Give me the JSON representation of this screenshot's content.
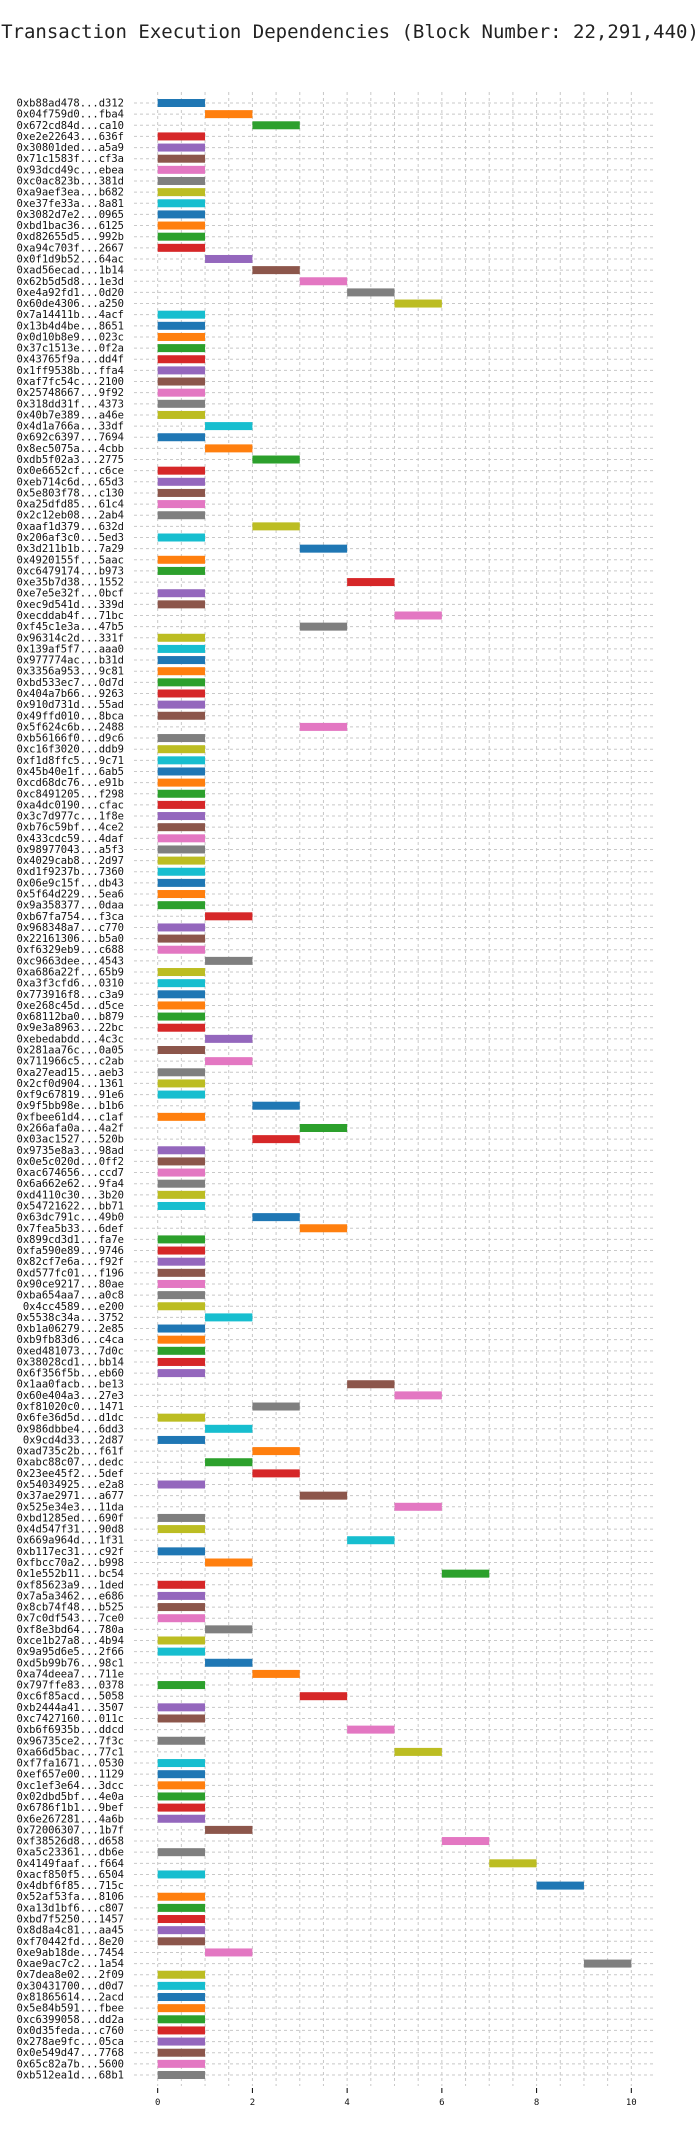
{
  "chart_data": {
    "type": "gantt",
    "title": "Transaction Execution Dependencies (Block Number: 22,291,440)",
    "xlabel": "",
    "ylabel": "",
    "xlim": [
      -0.5,
      10.5
    ],
    "x_ticks": [
      0,
      2,
      4,
      6,
      8,
      10
    ],
    "grid": true,
    "colors": [
      "#1f77b4",
      "#ff7f0e",
      "#2ca02c",
      "#d62728",
      "#9467bd",
      "#8c564b",
      "#e377c2",
      "#7f7f7f",
      "#bcbd22",
      "#17becf"
    ],
    "bars": [
      {
        "label": "0xb88ad478...d312",
        "start": 0,
        "end": 1
      },
      {
        "label": "0x04f759d0...fba4",
        "start": 1,
        "end": 2
      },
      {
        "label": "0x672cd84d...ca10",
        "start": 2,
        "end": 3
      },
      {
        "label": "0xe2e22643...636f",
        "start": 0,
        "end": 1
      },
      {
        "label": "0x30801ded...a5a9",
        "start": 0,
        "end": 1
      },
      {
        "label": "0x71c1583f...cf3a",
        "start": 0,
        "end": 1
      },
      {
        "label": "0x93dcd49c...ebea",
        "start": 0,
        "end": 1
      },
      {
        "label": "0xc0ac823b...381d",
        "start": 0,
        "end": 1
      },
      {
        "label": "0xa9aef3ea...b682",
        "start": 0,
        "end": 1
      },
      {
        "label": "0xe37fe33a...8a81",
        "start": 0,
        "end": 1
      },
      {
        "label": "0x3082d7e2...0965",
        "start": 0,
        "end": 1
      },
      {
        "label": "0xbd1bac36...6125",
        "start": 0,
        "end": 1
      },
      {
        "label": "0xd82655d5...992b",
        "start": 0,
        "end": 1
      },
      {
        "label": "0xa94c703f...2667",
        "start": 0,
        "end": 1
      },
      {
        "label": "0x0f1d9b52...64ac",
        "start": 1,
        "end": 2
      },
      {
        "label": "0xad56ecad...1b14",
        "start": 2,
        "end": 3
      },
      {
        "label": "0x62b5d5d8...1e3d",
        "start": 3,
        "end": 4
      },
      {
        "label": "0xe4a92fd1...0d20",
        "start": 4,
        "end": 5
      },
      {
        "label": "0x60de4306...a250",
        "start": 5,
        "end": 6
      },
      {
        "label": "0x7a14411b...4acf",
        "start": 0,
        "end": 1
      },
      {
        "label": "0x13b4d4be...8651",
        "start": 0,
        "end": 1
      },
      {
        "label": "0x0d10b8e9...023c",
        "start": 0,
        "end": 1
      },
      {
        "label": "0x37c1513e...0f2a",
        "start": 0,
        "end": 1
      },
      {
        "label": "0x43765f9a...dd4f",
        "start": 0,
        "end": 1
      },
      {
        "label": "0x1ff9538b...ffa4",
        "start": 0,
        "end": 1
      },
      {
        "label": "0xaf7fc54c...2100",
        "start": 0,
        "end": 1
      },
      {
        "label": "0x25748667...9f92",
        "start": 0,
        "end": 1
      },
      {
        "label": "0x318dd31f...4373",
        "start": 0,
        "end": 1
      },
      {
        "label": "0x40b7e389...a46e",
        "start": 0,
        "end": 1
      },
      {
        "label": "0x4d1a766a...33df",
        "start": 1,
        "end": 2
      },
      {
        "label": "0x692c6397...7694",
        "start": 0,
        "end": 1
      },
      {
        "label": "0x8ec5075a...4cbb",
        "start": 1,
        "end": 2
      },
      {
        "label": "0xdb5f02a3...2775",
        "start": 2,
        "end": 3
      },
      {
        "label": "0x0e6652cf...c6ce",
        "start": 0,
        "end": 1
      },
      {
        "label": "0xeb714c6d...65d3",
        "start": 0,
        "end": 1
      },
      {
        "label": "0x5e803f78...c130",
        "start": 0,
        "end": 1
      },
      {
        "label": "0xa25dfd85...61c4",
        "start": 0,
        "end": 1
      },
      {
        "label": "0x2c12eb08...2ab4",
        "start": 0,
        "end": 1
      },
      {
        "label": "0xaaf1d379...632d",
        "start": 2,
        "end": 3
      },
      {
        "label": "0x206af3c0...5ed3",
        "start": 0,
        "end": 1
      },
      {
        "label": "0x3d211b1b...7a29",
        "start": 3,
        "end": 4
      },
      {
        "label": "0x4920155f...5aac",
        "start": 0,
        "end": 1
      },
      {
        "label": "0xc6479174...b973",
        "start": 0,
        "end": 1
      },
      {
        "label": "0xe35b7d38...1552",
        "start": 4,
        "end": 5
      },
      {
        "label": "0xe7e5e32f...0bcf",
        "start": 0,
        "end": 1
      },
      {
        "label": "0xec9d541d...339d",
        "start": 0,
        "end": 1
      },
      {
        "label": "0xecddab4f...71bc",
        "start": 5,
        "end": 6
      },
      {
        "label": "0xf45c1e3a...47b5",
        "start": 3,
        "end": 4
      },
      {
        "label": "0x96314c2d...331f",
        "start": 0,
        "end": 1
      },
      {
        "label": "0x139af5f7...aaa0",
        "start": 0,
        "end": 1
      },
      {
        "label": "0x977774ac...b31d",
        "start": 0,
        "end": 1
      },
      {
        "label": "0x3356a953...9c81",
        "start": 0,
        "end": 1
      },
      {
        "label": "0xbd533ec7...0d7d",
        "start": 0,
        "end": 1
      },
      {
        "label": "0x404a7b66...9263",
        "start": 0,
        "end": 1
      },
      {
        "label": "0x910d731d...55ad",
        "start": 0,
        "end": 1
      },
      {
        "label": "0x49ffd010...8bca",
        "start": 0,
        "end": 1
      },
      {
        "label": "0x5f624c6b...2488",
        "start": 3,
        "end": 4
      },
      {
        "label": "0xb56166f0...d9c6",
        "start": 0,
        "end": 1
      },
      {
        "label": "0xc16f3020...ddb9",
        "start": 0,
        "end": 1
      },
      {
        "label": "0xf1d8ffc5...9c71",
        "start": 0,
        "end": 1
      },
      {
        "label": "0x45b40e1f...6ab5",
        "start": 0,
        "end": 1
      },
      {
        "label": "0xcd68dc76...e91b",
        "start": 0,
        "end": 1
      },
      {
        "label": "0xc8491205...f298",
        "start": 0,
        "end": 1
      },
      {
        "label": "0xa4dc0190...cfac",
        "start": 0,
        "end": 1
      },
      {
        "label": "0x3c7d977c...1f8e",
        "start": 0,
        "end": 1
      },
      {
        "label": "0xb76c59bf...4ce2",
        "start": 0,
        "end": 1
      },
      {
        "label": "0x433cdc59...4daf",
        "start": 0,
        "end": 1
      },
      {
        "label": "0x98977043...a5f3",
        "start": 0,
        "end": 1
      },
      {
        "label": "0x4029cab8...2d97",
        "start": 0,
        "end": 1
      },
      {
        "label": "0xd1f9237b...7360",
        "start": 0,
        "end": 1
      },
      {
        "label": "0x06e9c15f...db43",
        "start": 0,
        "end": 1
      },
      {
        "label": "0x5f64d229...5ea6",
        "start": 0,
        "end": 1
      },
      {
        "label": "0x9a358377...0daa",
        "start": 0,
        "end": 1
      },
      {
        "label": "0xb67fa754...f3ca",
        "start": 1,
        "end": 2
      },
      {
        "label": "0x968348a7...c770",
        "start": 0,
        "end": 1
      },
      {
        "label": "0x22161306...b5a0",
        "start": 0,
        "end": 1
      },
      {
        "label": "0xf6329eb9...c688",
        "start": 0,
        "end": 1
      },
      {
        "label": "0xc9663dee...4543",
        "start": 1,
        "end": 2
      },
      {
        "label": "0xa686a22f...65b9",
        "start": 0,
        "end": 1
      },
      {
        "label": "0xa3f3cfd6...0310",
        "start": 0,
        "end": 1
      },
      {
        "label": "0x773916f8...c3a9",
        "start": 0,
        "end": 1
      },
      {
        "label": "0xe268c45d...d5ce",
        "start": 0,
        "end": 1
      },
      {
        "label": "0x68112ba0...b879",
        "start": 0,
        "end": 1
      },
      {
        "label": "0x9e3a8963...22bc",
        "start": 0,
        "end": 1
      },
      {
        "label": "0xebedabdd...4c3c",
        "start": 1,
        "end": 2
      },
      {
        "label": "0x281aa76c...0a05",
        "start": 0,
        "end": 1
      },
      {
        "label": "0x711966c5...c2ab",
        "start": 1,
        "end": 2
      },
      {
        "label": "0xa27ead15...aeb3",
        "start": 0,
        "end": 1
      },
      {
        "label": "0x2cf0d904...1361",
        "start": 0,
        "end": 1
      },
      {
        "label": "0xf9c67819...91e6",
        "start": 0,
        "end": 1
      },
      {
        "label": "0x9f5bb98e...b1b6",
        "start": 2,
        "end": 3
      },
      {
        "label": "0xfbee61d4...c1af",
        "start": 0,
        "end": 1
      },
      {
        "label": "0x266afa0a...4a2f",
        "start": 3,
        "end": 4
      },
      {
        "label": "0x03ac1527...520b",
        "start": 2,
        "end": 3
      },
      {
        "label": "0x9735e8a3...98ad",
        "start": 0,
        "end": 1
      },
      {
        "label": "0x0e5c020d...0ff2",
        "start": 0,
        "end": 1
      },
      {
        "label": "0xac674656...ccd7",
        "start": 0,
        "end": 1
      },
      {
        "label": "0x6a662e62...9fa4",
        "start": 0,
        "end": 1
      },
      {
        "label": "0xd4110c30...3b20",
        "start": 0,
        "end": 1
      },
      {
        "label": "0x54721622...bb71",
        "start": 0,
        "end": 1
      },
      {
        "label": "0x63dc791c...49b0",
        "start": 2,
        "end": 3
      },
      {
        "label": "0x7fea5b33...6def",
        "start": 3,
        "end": 4
      },
      {
        "label": "0x899cd3d1...fa7e",
        "start": 0,
        "end": 1
      },
      {
        "label": "0xfa590e89...9746",
        "start": 0,
        "end": 1
      },
      {
        "label": "0x82cf7e6a...f92f",
        "start": 0,
        "end": 1
      },
      {
        "label": "0xd577fc01...f196",
        "start": 0,
        "end": 1
      },
      {
        "label": "0x90ce9217...80ae",
        "start": 0,
        "end": 1
      },
      {
        "label": "0xba654aa7...a0c8",
        "start": 0,
        "end": 1
      },
      {
        "label": "0x4cc4589...e200",
        "start": 0,
        "end": 1
      },
      {
        "label": "0x5538c34a...3752",
        "start": 1,
        "end": 2
      },
      {
        "label": "0xb1a06279...2e85",
        "start": 0,
        "end": 1
      },
      {
        "label": "0xb9fb83d6...c4ca",
        "start": 0,
        "end": 1
      },
      {
        "label": "0xed481073...7d0c",
        "start": 0,
        "end": 1
      },
      {
        "label": "0x38028cd1...bb14",
        "start": 0,
        "end": 1
      },
      {
        "label": "0x6f356f5b...eb60",
        "start": 0,
        "end": 1
      },
      {
        "label": "0x1aa0facb...be13",
        "start": 4,
        "end": 5
      },
      {
        "label": "0x60e404a3...27e3",
        "start": 5,
        "end": 6
      },
      {
        "label": "0xf81020c0...1471",
        "start": 2,
        "end": 3
      },
      {
        "label": "0x6fe36d5d...d1dc",
        "start": 0,
        "end": 1
      },
      {
        "label": "0x986dbbe4...6dd3",
        "start": 1,
        "end": 2
      },
      {
        "label": "0x9cd4d33...2d87",
        "start": 0,
        "end": 1
      },
      {
        "label": "0xad735c2b...f61f",
        "start": 2,
        "end": 3
      },
      {
        "label": "0xabc88c07...dedc",
        "start": 1,
        "end": 2
      },
      {
        "label": "0x23ee45f2...5def",
        "start": 2,
        "end": 3
      },
      {
        "label": "0x54034925...e2a8",
        "start": 0,
        "end": 1
      },
      {
        "label": "0x37ae2971...a677",
        "start": 3,
        "end": 4
      },
      {
        "label": "0x525e34e3...11da",
        "start": 5,
        "end": 6
      },
      {
        "label": "0xbd1285ed...690f",
        "start": 0,
        "end": 1
      },
      {
        "label": "0x4d547f31...90d8",
        "start": 0,
        "end": 1
      },
      {
        "label": "0x669a964d...1f31",
        "start": 4,
        "end": 5
      },
      {
        "label": "0xb117ec31...c92f",
        "start": 0,
        "end": 1
      },
      {
        "label": "0xfbcc70a2...b998",
        "start": 1,
        "end": 2
      },
      {
        "label": "0x1e552b11...bc54",
        "start": 6,
        "end": 7
      },
      {
        "label": "0xf85623a9...1ded",
        "start": 0,
        "end": 1
      },
      {
        "label": "0x7a5a3462...e686",
        "start": 0,
        "end": 1
      },
      {
        "label": "0x8cb74f48...b525",
        "start": 0,
        "end": 1
      },
      {
        "label": "0x7c0df543...7ce0",
        "start": 0,
        "end": 1
      },
      {
        "label": "0xf8e3bd64...780a",
        "start": 1,
        "end": 2
      },
      {
        "label": "0xce1b27a8...4b94",
        "start": 0,
        "end": 1
      },
      {
        "label": "0x9a95d6e5...2f66",
        "start": 0,
        "end": 1
      },
      {
        "label": "0xd5b99b76...98c1",
        "start": 1,
        "end": 2
      },
      {
        "label": "0xa74deea7...711e",
        "start": 2,
        "end": 3
      },
      {
        "label": "0x797ffe83...0378",
        "start": 0,
        "end": 1
      },
      {
        "label": "0xc6f85acd...5058",
        "start": 3,
        "end": 4
      },
      {
        "label": "0xb2444a41...3507",
        "start": 0,
        "end": 1
      },
      {
        "label": "0xc7427160...011c",
        "start": 0,
        "end": 1
      },
      {
        "label": "0xb6f6935b...ddcd",
        "start": 4,
        "end": 5
      },
      {
        "label": "0x96735ce2...7f3c",
        "start": 0,
        "end": 1
      },
      {
        "label": "0xa66d5bac...77c1",
        "start": 5,
        "end": 6
      },
      {
        "label": "0xf7fa1671...0530",
        "start": 0,
        "end": 1
      },
      {
        "label": "0xef657e00...1129",
        "start": 0,
        "end": 1
      },
      {
        "label": "0xc1ef3e64...3dcc",
        "start": 0,
        "end": 1
      },
      {
        "label": "0x02dbd5bf...4e0a",
        "start": 0,
        "end": 1
      },
      {
        "label": "0x6786f1b1...9bef",
        "start": 0,
        "end": 1
      },
      {
        "label": "0x6e267281...4a6b",
        "start": 0,
        "end": 1
      },
      {
        "label": "0x72006307...1b7f",
        "start": 1,
        "end": 2
      },
      {
        "label": "0xf38526d8...d658",
        "start": 6,
        "end": 7
      },
      {
        "label": "0xa5c23361...db6e",
        "start": 0,
        "end": 1
      },
      {
        "label": "0x4149faaf...f664",
        "start": 7,
        "end": 8
      },
      {
        "label": "0xacf850f5...6504",
        "start": 0,
        "end": 1
      },
      {
        "label": "0x4dbf6f85...715c",
        "start": 8,
        "end": 9
      },
      {
        "label": "0x52af53fa...8106",
        "start": 0,
        "end": 1
      },
      {
        "label": "0xa13d1bf6...c807",
        "start": 0,
        "end": 1
      },
      {
        "label": "0xbd7f5250...1457",
        "start": 0,
        "end": 1
      },
      {
        "label": "0x8d8a4c81...aa45",
        "start": 0,
        "end": 1
      },
      {
        "label": "0xf70442fd...8e20",
        "start": 0,
        "end": 1
      },
      {
        "label": "0xe9ab18de...7454",
        "start": 1,
        "end": 2
      },
      {
        "label": "0xae9ac7c2...1a54",
        "start": 9,
        "end": 10
      },
      {
        "label": "0x7dea8e02...2f09",
        "start": 0,
        "end": 1
      },
      {
        "label": "0x30431700...d0d7",
        "start": 0,
        "end": 1
      },
      {
        "label": "0x81865614...2acd",
        "start": 0,
        "end": 1
      },
      {
        "label": "0x5e84b591...fbee",
        "start": 0,
        "end": 1
      },
      {
        "label": "0xc6399058...dd2a",
        "start": 0,
        "end": 1
      },
      {
        "label": "0x0d35feda...c760",
        "start": 0,
        "end": 1
      },
      {
        "label": "0x278ae9fc...05ca",
        "start": 0,
        "end": 1
      },
      {
        "label": "0x0e549d47...7768",
        "start": 0,
        "end": 1
      },
      {
        "label": "0x65c82a7b...5600",
        "start": 0,
        "end": 1
      },
      {
        "label": "0xb512ea1d...68b1",
        "start": 0,
        "end": 1
      }
    ]
  }
}
